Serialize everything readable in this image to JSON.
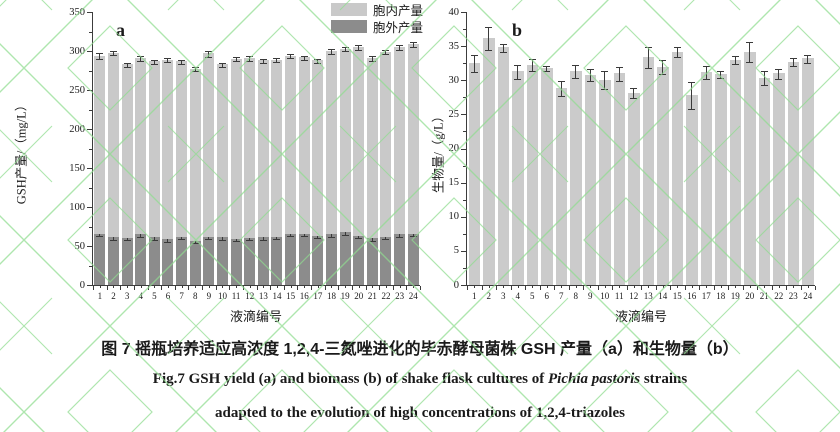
{
  "figure": {
    "caption_zh": "图 7  摇瓶培养适应高浓度 1,2,4-三氮唑进化的毕赤酵母菌株 GSH 产量（a）和生物量（b）",
    "caption_en_line1_pre": "Fig.7 GSH yield (a) and biomass (b) of shake flask cultures of ",
    "caption_en_species": "Pichia pastoris",
    "caption_en_line1_post": " strains",
    "caption_en_line2": "adapted to the evolution of high concentrations of 1,2,4-triazoles"
  },
  "colors": {
    "intracellular_bar": "#c9c9c9",
    "extracellular_bar": "#8c8c8c",
    "biomass_bar": "#cbcbcb",
    "error_bar": "#3a3a3a",
    "axis": "#3c3c3c",
    "watermark_green": "#8fdc8f"
  },
  "chart_data": [
    {
      "id": "a",
      "type": "bar",
      "stacked": true,
      "panel_label": "a",
      "xlabel": "液滴编号",
      "ylabel": "GSH产量/（mg/L）",
      "ylim": [
        0,
        350
      ],
      "yticks": [
        0,
        50,
        100,
        150,
        200,
        250,
        300,
        350
      ],
      "categories": [
        1,
        2,
        3,
        4,
        5,
        6,
        7,
        8,
        9,
        10,
        11,
        12,
        13,
        14,
        15,
        16,
        17,
        18,
        19,
        20,
        21,
        22,
        23,
        24
      ],
      "legend": [
        {
          "label": "胞内产量",
          "color": "#c9c9c9"
        },
        {
          "label": "胞外产量",
          "color": "#8c8c8c"
        }
      ],
      "series": [
        {
          "name": "胞外产量",
          "color": "#8c8c8c",
          "values": [
            66,
            61,
            60,
            65,
            61,
            59,
            62,
            57,
            62,
            61,
            59,
            60,
            61,
            62,
            66,
            66,
            63,
            65,
            68,
            63,
            60,
            62,
            65,
            66
          ],
          "errors": [
            1,
            2,
            1,
            2,
            1,
            2,
            2,
            1,
            2,
            1,
            1,
            1,
            1,
            1,
            2,
            1,
            1,
            1,
            2,
            1,
            2,
            1,
            1,
            1
          ]
        },
        {
          "name": "胞内产量",
          "color": "#c9c9c9",
          "values": [
            228,
            237,
            223,
            226,
            226,
            230,
            225,
            220,
            235,
            222,
            231,
            231,
            227,
            227,
            228,
            226,
            225,
            235,
            235,
            242,
            231,
            237,
            240,
            243
          ],
          "errors": [
            3,
            2,
            2,
            2,
            2,
            2,
            2,
            2,
            3,
            2,
            2,
            2,
            2,
            2,
            2,
            2,
            2,
            2,
            2,
            3,
            2,
            2,
            3,
            3
          ]
        }
      ]
    },
    {
      "id": "b",
      "type": "bar",
      "stacked": false,
      "panel_label": "b",
      "xlabel": "液滴编号",
      "ylabel": "生物量/（g/L）",
      "ylim": [
        0,
        40
      ],
      "yticks": [
        0,
        5,
        10,
        15,
        20,
        25,
        30,
        35,
        40
      ],
      "categories": [
        1,
        2,
        3,
        4,
        5,
        6,
        7,
        8,
        9,
        10,
        11,
        12,
        13,
        14,
        15,
        16,
        17,
        18,
        19,
        20,
        21,
        22,
        23,
        24
      ],
      "series": [
        {
          "name": "生物量",
          "color": "#cbcbcb",
          "values": [
            32.5,
            36.2,
            34.8,
            31.3,
            32.3,
            31.8,
            28.9,
            31.4,
            30.8,
            30.1,
            31.0,
            28.2,
            33.4,
            32.0,
            34.2,
            27.9,
            31.2,
            30.9,
            33.0,
            34.2,
            30.4,
            31.0,
            32.7,
            33.2
          ],
          "errors": [
            1.2,
            1.6,
            0.5,
            0.9,
            0.8,
            0.3,
            1.0,
            0.9,
            0.8,
            1.2,
            1.0,
            0.6,
            1.4,
            0.9,
            0.6,
            1.9,
            0.9,
            0.4,
            0.5,
            1.4,
            1.0,
            0.7,
            0.5,
            0.5
          ]
        }
      ]
    }
  ]
}
